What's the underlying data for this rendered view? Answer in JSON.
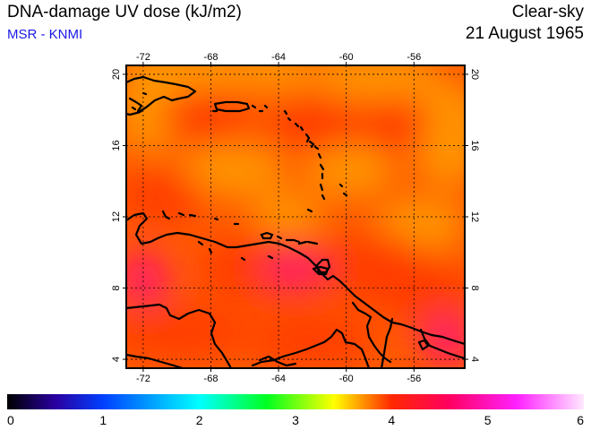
{
  "header": {
    "title": "DNA-damage UV dose (kJ/m2)",
    "credit": "MSR - KNMI",
    "sky_condition": "Clear-sky",
    "date": "21 August 1965"
  },
  "map": {
    "lon_range": [
      -73,
      -53
    ],
    "lat_range": [
      3.5,
      20.5
    ],
    "lon_ticks": [
      -72,
      -68,
      -64,
      -60,
      -56
    ],
    "lat_ticks": [
      4,
      8,
      12,
      16,
      20
    ],
    "lon_labels": [
      "-72",
      "-68",
      "-64",
      "-60",
      "-56"
    ],
    "lat_labels": [
      "4",
      "8",
      "12",
      "16",
      "20"
    ],
    "grid": "dotted",
    "background_colors": {
      "low": "#ff9a00",
      "mid": "#ff3a00",
      "high": "#ff1a6e"
    }
  },
  "colorbar": {
    "min": 0,
    "max": 6,
    "labels": [
      "0",
      "1",
      "2",
      "3",
      "4",
      "5",
      "6"
    ],
    "stops": [
      {
        "v": 0,
        "c": "#000000"
      },
      {
        "v": 0.5,
        "c": "#2a00a0"
      },
      {
        "v": 1,
        "c": "#0040ff"
      },
      {
        "v": 2,
        "c": "#00ffff"
      },
      {
        "v": 2.7,
        "c": "#00ff20"
      },
      {
        "v": 3.4,
        "c": "#ffff00"
      },
      {
        "v": 4,
        "c": "#ff2800"
      },
      {
        "v": 4.6,
        "c": "#ff0060"
      },
      {
        "v": 5.3,
        "c": "#ff20ff"
      },
      {
        "v": 6,
        "c": "#ffe8ff"
      }
    ]
  }
}
